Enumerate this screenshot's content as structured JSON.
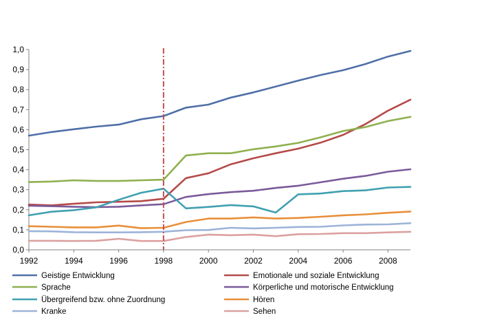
{
  "chart_data": {
    "type": "line",
    "x": [
      1992,
      1993,
      1994,
      1995,
      1996,
      1997,
      1998,
      1999,
      2000,
      2001,
      2002,
      2003,
      2004,
      2005,
      2006,
      2007,
      2008,
      2009
    ],
    "x_ticks": [
      1992,
      1994,
      1996,
      1998,
      2000,
      2002,
      2004,
      2006,
      2008
    ],
    "x_tick_labels": [
      "1992",
      "1994",
      "1996",
      "1998",
      "2000",
      "2002",
      "2004",
      "2006",
      "2008"
    ],
    "xlim": [
      1992,
      2009
    ],
    "ylim": [
      0,
      1.0
    ],
    "y_ticks": [
      0,
      0.1,
      0.2,
      0.3,
      0.4,
      0.5,
      0.6,
      0.7,
      0.8,
      0.9,
      1.0
    ],
    "y_tick_labels": [
      "0,0",
      "0,1",
      "0,2",
      "0,3",
      "0,4",
      "0,5",
      "0,6",
      "0,7",
      "0,8",
      "0,9",
      "1,0"
    ],
    "grid": false,
    "legend_position": "bottom",
    "reference_line": {
      "x": 1998,
      "color": "#c0504d",
      "style": "dash-dot"
    },
    "series": [
      {
        "name": "Geistige Entwicklung",
        "color": "#4f6fa8",
        "values": [
          0.57,
          0.588,
          0.602,
          0.615,
          0.625,
          0.652,
          0.668,
          0.71,
          0.725,
          0.76,
          0.786,
          0.815,
          0.845,
          0.873,
          0.897,
          0.928,
          0.965,
          0.993
        ]
      },
      {
        "name": "Emotionale und soziale Entwicklung",
        "color": "#b44a48",
        "values": [
          0.226,
          0.222,
          0.23,
          0.237,
          0.24,
          0.243,
          0.255,
          0.358,
          0.382,
          0.427,
          0.457,
          0.482,
          0.505,
          0.535,
          0.574,
          0.628,
          0.695,
          0.75
        ]
      },
      {
        "name": "Sprache",
        "color": "#8eb04f",
        "values": [
          0.338,
          0.341,
          0.347,
          0.344,
          0.344,
          0.347,
          0.35,
          0.471,
          0.482,
          0.482,
          0.502,
          0.516,
          0.534,
          0.562,
          0.593,
          0.613,
          0.643,
          0.664
        ]
      },
      {
        "name": "Körperliche und motorische Entwicklung",
        "color": "#7a5a9a",
        "values": [
          0.22,
          0.218,
          0.215,
          0.213,
          0.215,
          0.222,
          0.228,
          0.264,
          0.278,
          0.288,
          0.295,
          0.309,
          0.32,
          0.337,
          0.355,
          0.369,
          0.39,
          0.402
        ]
      },
      {
        "name": "Übergreifend bzw. ohne Zuordnung",
        "color": "#3fa0b0",
        "values": [
          0.172,
          0.19,
          0.198,
          0.212,
          0.25,
          0.285,
          0.305,
          0.207,
          0.214,
          0.223,
          0.217,
          0.186,
          0.277,
          0.281,
          0.293,
          0.297,
          0.311,
          0.314
        ]
      },
      {
        "name": "Hören",
        "color": "#e88f3a",
        "values": [
          0.118,
          0.115,
          0.112,
          0.112,
          0.121,
          0.108,
          0.11,
          0.139,
          0.156,
          0.156,
          0.162,
          0.156,
          0.159,
          0.165,
          0.172,
          0.177,
          0.185,
          0.191
        ]
      },
      {
        "name": "Kranke",
        "color": "#9db3d8",
        "values": [
          0.093,
          0.092,
          0.088,
          0.087,
          0.087,
          0.088,
          0.09,
          0.098,
          0.099,
          0.11,
          0.107,
          0.11,
          0.114,
          0.115,
          0.122,
          0.126,
          0.127,
          0.133
        ]
      },
      {
        "name": "Sehen",
        "color": "#dca0a0",
        "values": [
          0.045,
          0.045,
          0.044,
          0.045,
          0.055,
          0.044,
          0.044,
          0.064,
          0.076,
          0.073,
          0.076,
          0.068,
          0.078,
          0.079,
          0.083,
          0.083,
          0.087,
          0.09
        ]
      }
    ]
  }
}
